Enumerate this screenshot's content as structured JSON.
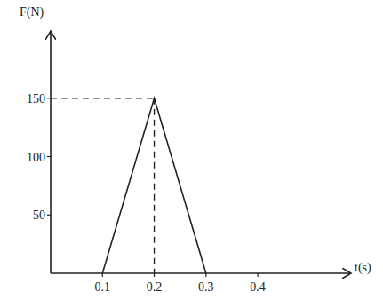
{
  "chart_data": {
    "type": "line",
    "x_label": "t(s)",
    "y_label": "F(N)",
    "x": [
      0.1,
      0.2,
      0.3
    ],
    "values": [
      0,
      150,
      0
    ],
    "color": "#222222",
    "xlim": [
      0,
      0.58
    ],
    "ylim": [
      0,
      200
    ],
    "xticks": [
      0.1,
      0.2,
      0.3,
      0.4
    ],
    "yticks": [
      50,
      100,
      150
    ],
    "grid": false
  }
}
